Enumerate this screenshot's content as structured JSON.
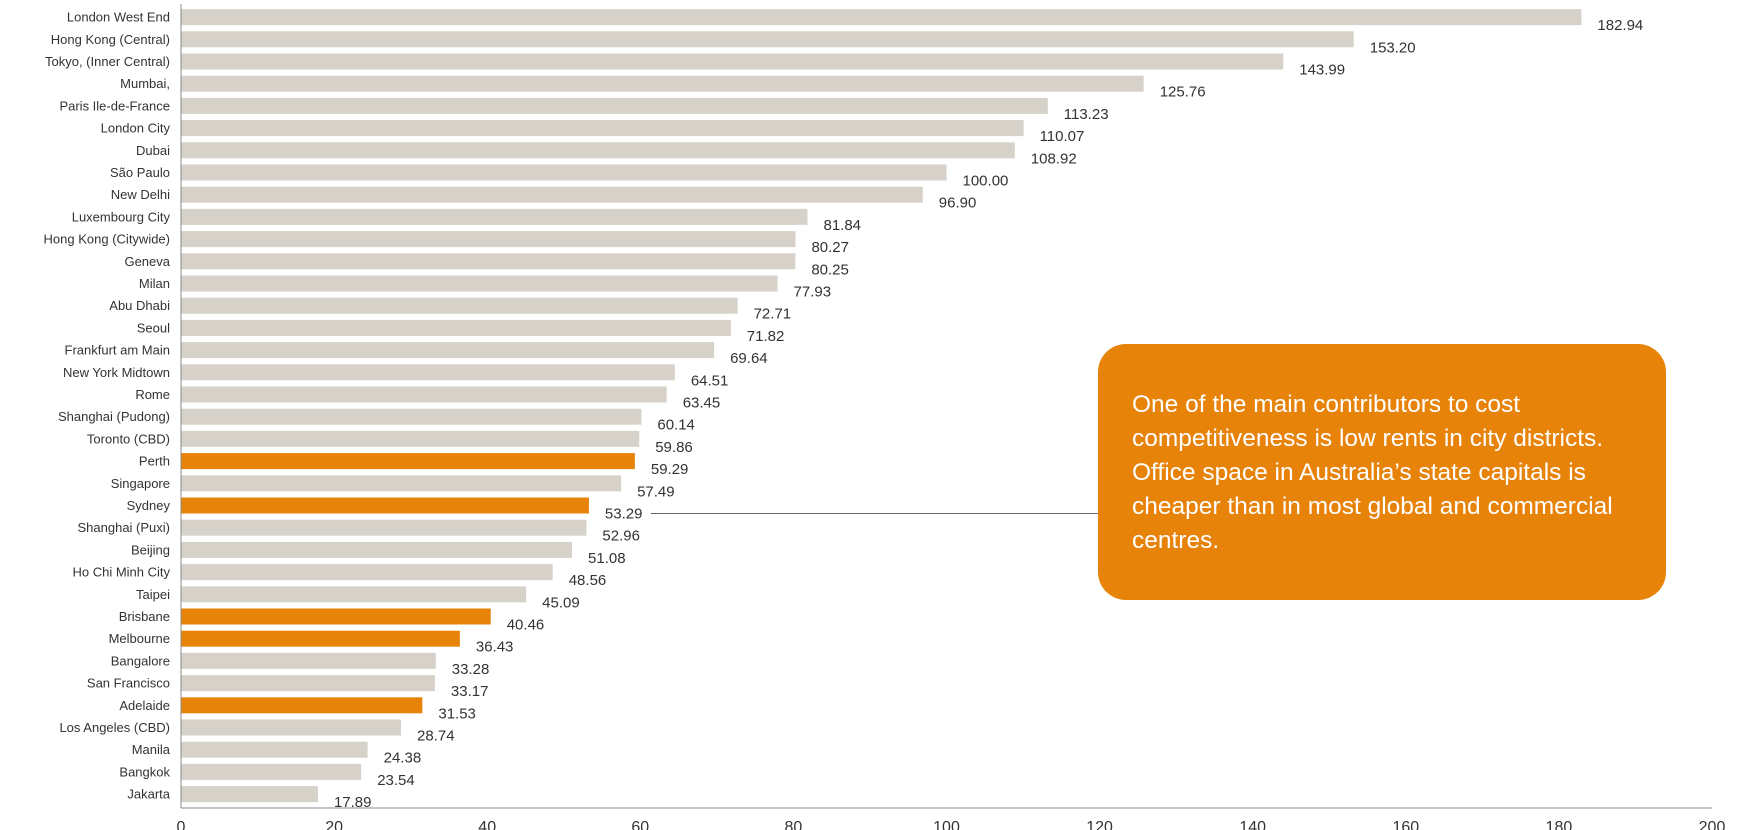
{
  "chart_data": {
    "type": "bar",
    "orientation": "horizontal",
    "categories": [
      "London West End",
      "Hong Kong (Central)",
      "Tokyo, (Inner Central)",
      "Mumbai,",
      "Paris Ile-de-France",
      "London City",
      "Dubai",
      "São Paulo",
      "New Delhi",
      "Luxembourg City",
      "Hong Kong (Citywide)",
      "Geneva",
      "Milan",
      "Abu Dhabi",
      "Seoul",
      "Frankfurt am Main",
      "New York Midtown",
      "Rome",
      "Shanghai (Pudong)",
      "Toronto (CBD)",
      "Perth",
      "Singapore",
      "Sydney",
      "Shanghai (Puxi)",
      "Beijing",
      "Ho Chi Minh City",
      "Taipei",
      "Brisbane",
      "Melbourne",
      "Bangalore",
      "San Francisco",
      "Adelaide",
      "Los Angeles (CBD)",
      "Manila",
      "Bangkok",
      "Jakarta"
    ],
    "values": [
      182.94,
      153.2,
      143.99,
      125.76,
      113.23,
      110.07,
      108.92,
      100.0,
      96.9,
      81.84,
      80.27,
      80.25,
      77.93,
      72.71,
      71.82,
      69.64,
      64.51,
      63.45,
      60.14,
      59.86,
      59.29,
      57.49,
      53.29,
      52.96,
      51.08,
      48.56,
      45.09,
      40.46,
      36.43,
      33.28,
      33.17,
      31.53,
      28.74,
      24.38,
      23.54,
      17.89
    ],
    "value_labels": [
      "182.94",
      "153.20",
      "143.99",
      "125.76",
      "113.23",
      "110.07",
      "108.92",
      "100.00",
      "96.90",
      "81.84",
      "80.27",
      "80.25",
      "77.93",
      "72.71",
      "71.82",
      "69.64",
      "64.51",
      "63.45",
      "60.14",
      "59.86",
      "59.29",
      "57.49",
      "53.29",
      "52.96",
      "51.08",
      "48.56",
      "45.09",
      "40.46",
      "36.43",
      "33.28",
      "33.17",
      "31.53",
      "28.74",
      "24.38",
      "23.54",
      "17.89"
    ],
    "highlighted": [
      "Perth",
      "Sydney",
      "Brisbane",
      "Melbourne",
      "Adelaide"
    ],
    "xlim": [
      0,
      200
    ],
    "xticks": [
      0,
      20,
      40,
      60,
      80,
      100,
      120,
      140,
      160,
      180,
      200
    ],
    "title": "",
    "xlabel": "",
    "ylabel": "",
    "grid": false,
    "colors": {
      "bar": "#d6d2c9",
      "highlight": "#e8830a",
      "axis": "#888888",
      "leader": "#666666"
    },
    "annotation": {
      "text": "One of the main contributors to cost competitiveness is low rents in city districts. Office space in Australia’s state capitals is cheaper than in most global and commercial centres.",
      "points_to": "Sydney",
      "fill": "#e8830a",
      "text_color": "#ffffff"
    }
  }
}
